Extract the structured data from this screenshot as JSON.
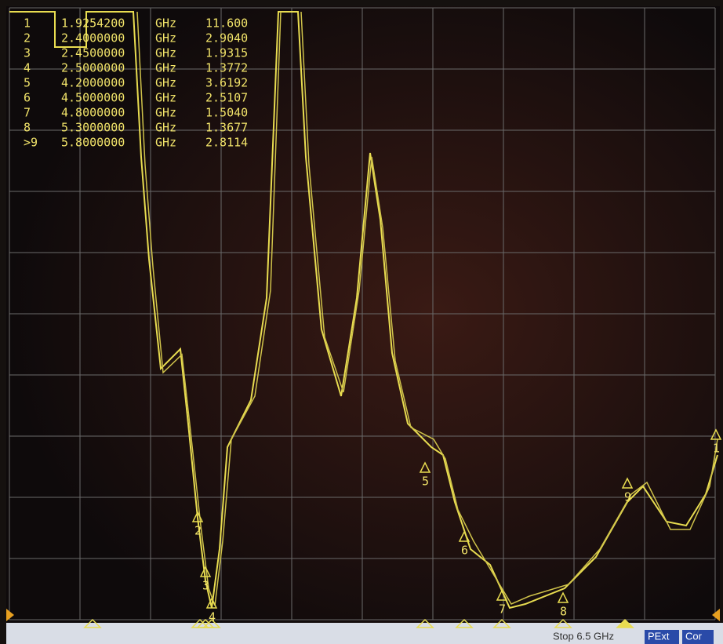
{
  "markers": [
    {
      "num": "1",
      "freq": "1.9254200",
      "unit": "GHz",
      "value": "11.600"
    },
    {
      "num": "2",
      "freq": "2.4000000",
      "unit": "GHz",
      "value": "2.9040"
    },
    {
      "num": "3",
      "freq": "2.4500000",
      "unit": "GHz",
      "value": "1.9315"
    },
    {
      "num": "4",
      "freq": "2.5000000",
      "unit": "GHz",
      "value": "1.3772"
    },
    {
      "num": "5",
      "freq": "4.2000000",
      "unit": "GHz",
      "value": "3.6192"
    },
    {
      "num": "6",
      "freq": "4.5000000",
      "unit": "GHz",
      "value": "2.5107"
    },
    {
      "num": "7",
      "freq": "4.8000000",
      "unit": "GHz",
      "value": "1.5040"
    },
    {
      "num": "8",
      "freq": "5.3000000",
      "unit": "GHz",
      "value": "1.3677"
    },
    {
      "num": ">9",
      "freq": "5.8000000",
      "unit": "GHz",
      "value": "2.8114"
    }
  ],
  "trace_labels": [
    "2",
    "3",
    "4",
    "5",
    "6",
    "7",
    "8",
    "9",
    "1"
  ],
  "status": {
    "stop": "Stop 6.5 GHz",
    "pext": "PExt",
    "cor": "Cor"
  }
}
